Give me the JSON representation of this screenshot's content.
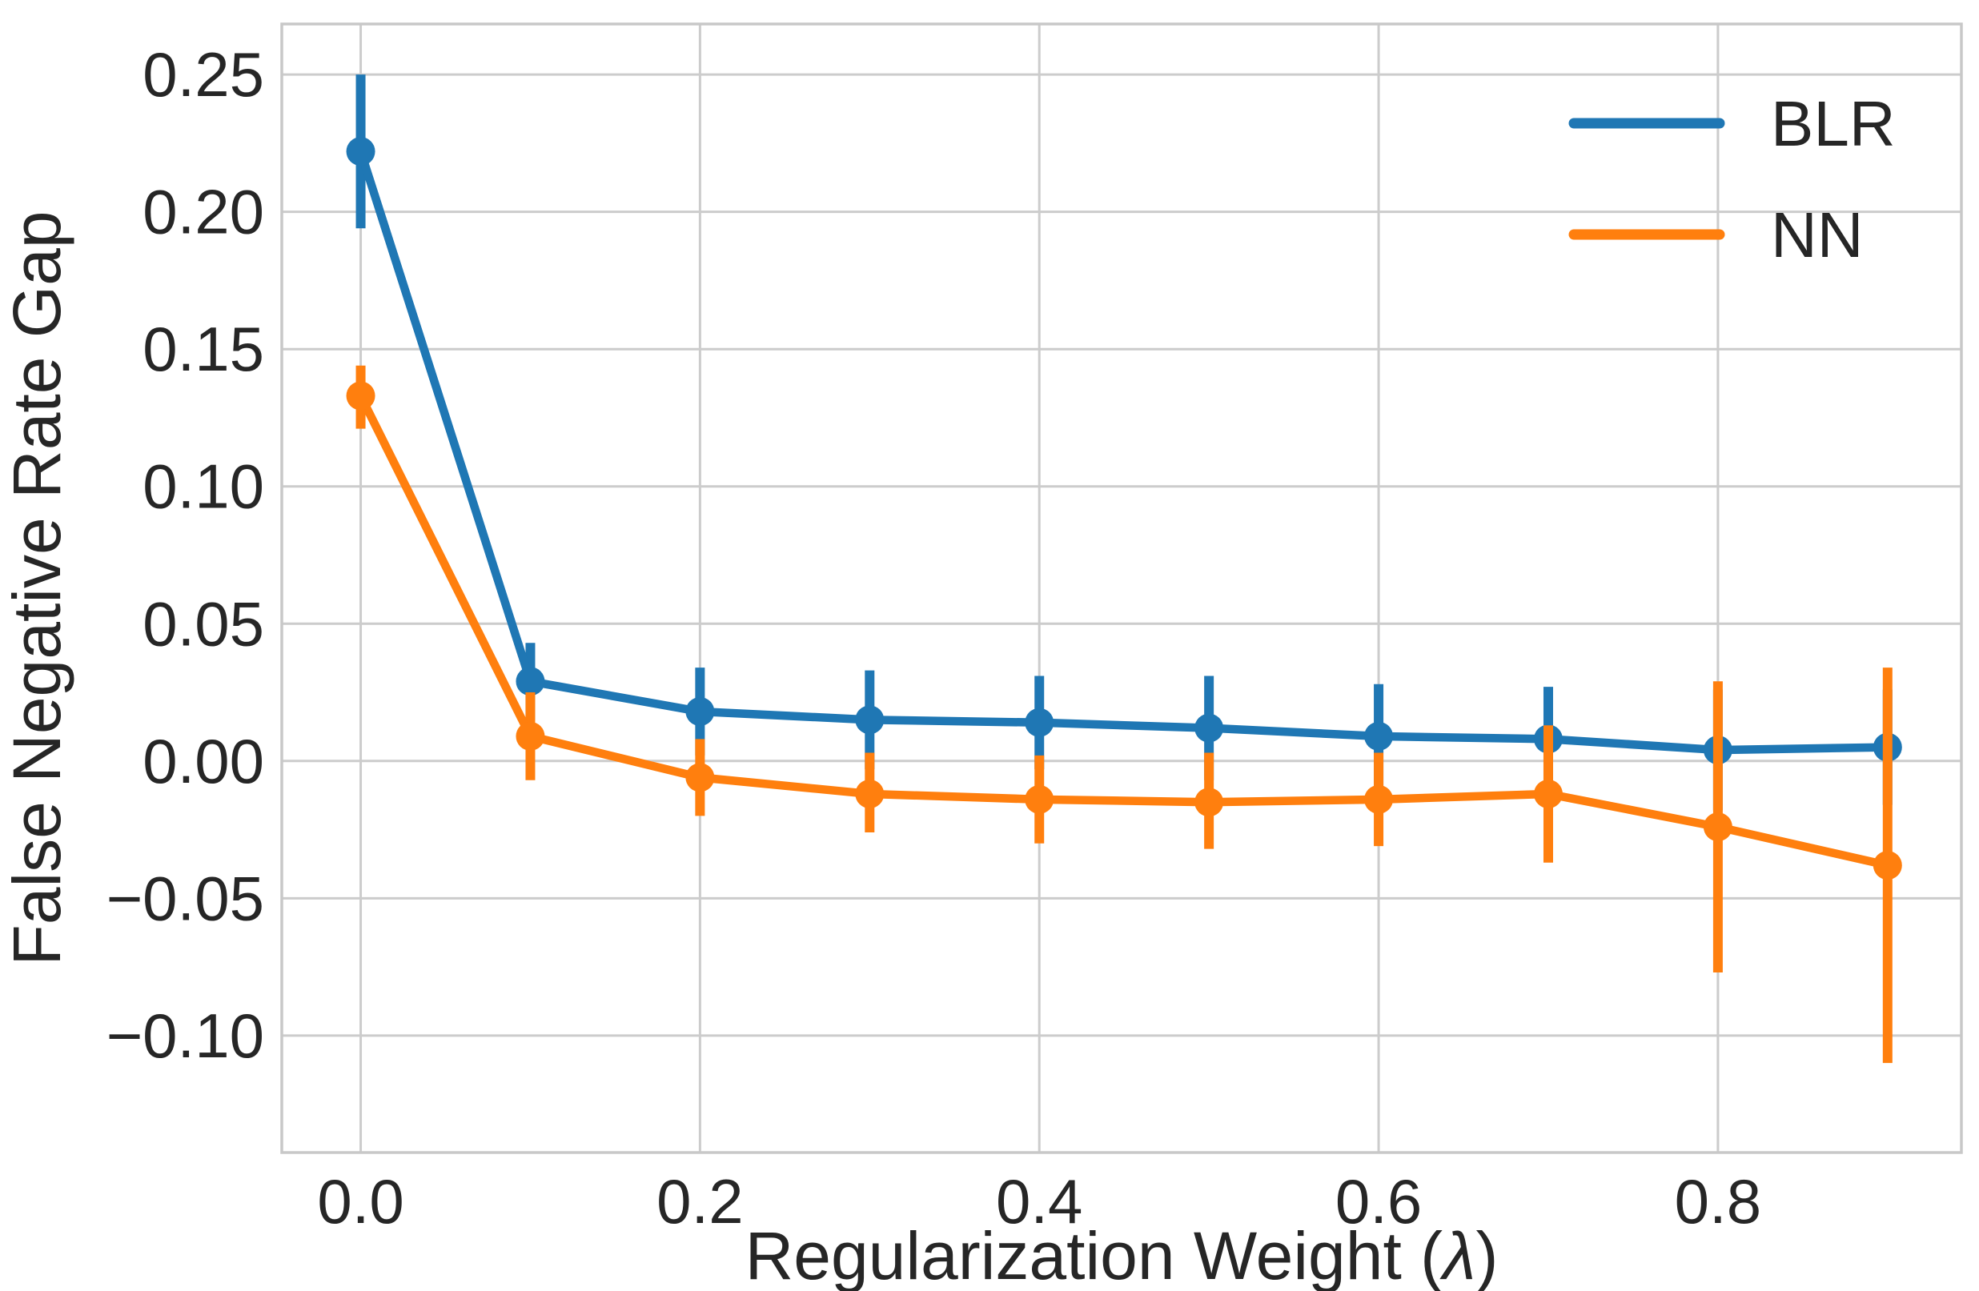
{
  "chart_data": {
    "type": "line",
    "title": "",
    "xlabel": "Regularization Weight (λ)",
    "xlabel_parts": {
      "pre": "Regularization Weight (",
      "symbol": "λ",
      "post": ")"
    },
    "ylabel": "False Negative Rate Gap",
    "x": [
      0.0,
      0.1,
      0.2,
      0.3,
      0.4,
      0.5,
      0.6,
      0.7,
      0.8,
      0.9
    ],
    "series": [
      {
        "name": "BLR",
        "color": "#1f77b4",
        "values": [
          0.222,
          0.029,
          0.018,
          0.015,
          0.014,
          0.012,
          0.009,
          0.008,
          0.004,
          0.005
        ],
        "err_low": [
          0.194,
          0.015,
          0.002,
          -0.003,
          -0.003,
          -0.007,
          -0.01,
          -0.011,
          -0.018,
          -0.016
        ],
        "err_high": [
          0.25,
          0.043,
          0.034,
          0.033,
          0.031,
          0.031,
          0.028,
          0.027,
          0.026,
          0.026
        ]
      },
      {
        "name": "NN",
        "color": "#ff7f0e",
        "values": [
          0.133,
          0.009,
          -0.006,
          -0.012,
          -0.014,
          -0.015,
          -0.014,
          -0.012,
          -0.024,
          -0.038
        ],
        "err_low": [
          0.121,
          -0.007,
          -0.02,
          -0.026,
          -0.03,
          -0.032,
          -0.031,
          -0.037,
          -0.077,
          -0.11
        ],
        "err_high": [
          0.144,
          0.025,
          0.008,
          0.003,
          0.002,
          0.003,
          0.003,
          0.013,
          0.029,
          0.034
        ]
      }
    ],
    "xticks": {
      "values": [
        0.0,
        0.2,
        0.4,
        0.6,
        0.8
      ],
      "labels": [
        "0.0",
        "0.2",
        "0.4",
        "0.6",
        "0.8"
      ]
    },
    "yticks": {
      "values": [
        0.25,
        0.2,
        0.15,
        0.1,
        0.05,
        0.0,
        -0.05,
        -0.1
      ],
      "labels": [
        "0.25",
        "0.20",
        "0.15",
        "0.10",
        "0.05",
        "0.00",
        "−0.05",
        "−0.10"
      ]
    },
    "xlim": [
      -0.0465,
      0.9435
    ],
    "ylim": [
      -0.1426,
      0.2684
    ],
    "grid": true,
    "legend": {
      "position": "upper right",
      "entries": [
        "BLR",
        "NN"
      ]
    },
    "colors": {
      "blr": "#1f77b4",
      "nn": "#ff7f0e",
      "grid": "#cccccc",
      "spine": "#c8c8c8",
      "text": "#262626",
      "background": "#ffffff"
    }
  }
}
